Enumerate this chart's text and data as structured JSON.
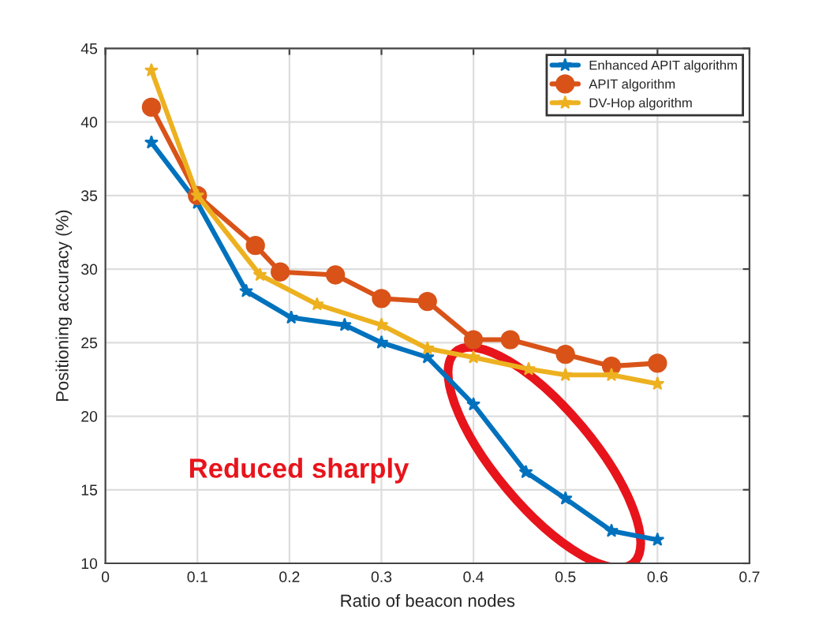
{
  "chart_data": {
    "type": "line",
    "xlabel": "Ratio of beacon nodes",
    "ylabel": "Positioning accuracy (%)",
    "xlim": [
      0,
      0.7
    ],
    "xticks": [
      0,
      0.1,
      0.2,
      0.3,
      0.4,
      0.5,
      0.6,
      0.7
    ],
    "ylim": [
      10,
      45
    ],
    "yticks": [
      10,
      15,
      20,
      25,
      30,
      35,
      40,
      45
    ],
    "grid": true,
    "legend": "top right",
    "series": [
      {
        "name": "Enhanced APIT algorithm",
        "color": "#0072bd",
        "marker": "star",
        "x": [
          0.05,
          0.1,
          0.153,
          0.202,
          0.26,
          0.3,
          0.35,
          0.4,
          0.457,
          0.5,
          0.55,
          0.6
        ],
        "values": [
          38.6,
          34.5,
          28.5,
          26.7,
          26.2,
          25.0,
          24.0,
          20.8,
          16.2,
          14.4,
          12.2,
          11.6
        ]
      },
      {
        "name": "APIT algorithm",
        "color": "#d95319",
        "marker": "circle",
        "x": [
          0.05,
          0.1,
          0.163,
          0.19,
          0.25,
          0.3,
          0.35,
          0.4,
          0.44,
          0.5,
          0.55,
          0.6
        ],
        "values": [
          41.0,
          35.0,
          31.6,
          29.8,
          29.6,
          28.0,
          27.8,
          25.2,
          25.2,
          24.2,
          23.4,
          23.6
        ]
      },
      {
        "name": "DV-Hop algorithm",
        "color": "#edb120",
        "marker": "star",
        "x": [
          0.05,
          0.1,
          0.168,
          0.23,
          0.3,
          0.35,
          0.4,
          0.46,
          0.5,
          0.55,
          0.6
        ],
        "values": [
          43.5,
          35.0,
          29.6,
          27.6,
          26.2,
          24.6,
          24.0,
          23.2,
          22.8,
          22.8,
          22.2
        ]
      }
    ],
    "annotations": [
      "Reduced sharply"
    ]
  }
}
